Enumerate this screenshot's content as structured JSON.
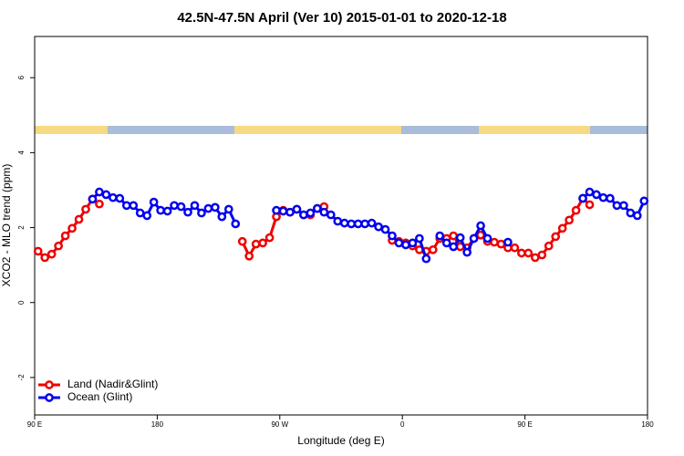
{
  "chart_data": {
    "type": "line",
    "title": "42.5N-47.5N April (Ver 10)   2015-01-01 to 2020-12-18",
    "x_label": "Longitude (deg E)",
    "y_label": "XCO2 - MLO trend (ppm)",
    "xlim": [
      90,
      540
    ],
    "ylim": [
      -3,
      7.1
    ],
    "xticks": [
      {
        "value": 90,
        "label": "90 E"
      },
      180,
      {
        "value": 270,
        "label": "90 W"
      },
      {
        "value": 360,
        "label": "0"
      },
      {
        "value": 450,
        "label": "90 E"
      },
      {
        "value": 540,
        "label": "180"
      }
    ],
    "yticks": [
      -2,
      0,
      2,
      4,
      6
    ],
    "legend": "bottom-left",
    "x": [
      92.5,
      97.5,
      102.5,
      107.5,
      112.5,
      117.5,
      122.5,
      127.5,
      132.5,
      137.5,
      142.5,
      147.5,
      152.5,
      157.5,
      162.5,
      167.5,
      172.5,
      177.5,
      182.5,
      187.5,
      192.5,
      197.5,
      202.5,
      207.5,
      212.5,
      217.5,
      222.5,
      227.5,
      232.5,
      237.5,
      242.5,
      247.5,
      252.5,
      257.5,
      262.5,
      267.5,
      272.5,
      277.5,
      282.5,
      287.5,
      292.5,
      297.5,
      302.5,
      307.5,
      312.5,
      317.5,
      322.5,
      327.5,
      332.5,
      337.5,
      342.5,
      347.5,
      352.5,
      357.5,
      362.5,
      367.5,
      372.5,
      377.5,
      382.5,
      387.5,
      392.5,
      397.5,
      402.5,
      407.5,
      412.5,
      417.5,
      422.5,
      427.5,
      432.5,
      437.5,
      442.5,
      447.5,
      452.5,
      457.5,
      462.5,
      467.5,
      472.5,
      477.5,
      482.5,
      487.5,
      492.5,
      497.5,
      502.5,
      507.5,
      512.5,
      517.5,
      522.5,
      527.5,
      532.5,
      537.5
    ],
    "series": [
      {
        "name": "Land (Nadir&Glint)",
        "color": "#ee0000",
        "values": [
          1.37,
          1.2,
          1.29,
          1.51,
          1.78,
          1.98,
          2.22,
          2.49,
          2.76,
          2.63,
          null,
          null,
          null,
          null,
          null,
          null,
          null,
          null,
          null,
          null,
          null,
          null,
          null,
          null,
          null,
          null,
          null,
          null,
          null,
          null,
          1.63,
          1.24,
          1.56,
          1.59,
          1.73,
          2.29,
          2.46,
          2.41,
          2.49,
          2.34,
          2.34,
          2.51,
          2.56,
          null,
          null,
          null,
          null,
          null,
          null,
          null,
          null,
          null,
          1.66,
          1.63,
          1.59,
          1.51,
          1.41,
          1.37,
          1.41,
          1.71,
          1.71,
          1.78,
          1.49,
          1.46,
          1.71,
          1.8,
          1.63,
          1.61,
          1.56,
          1.46,
          1.46,
          1.32,
          1.32,
          1.2,
          1.27,
          1.51,
          1.76,
          1.98,
          2.2,
          2.46,
          2.78,
          2.61,
          null,
          null,
          null,
          null,
          null,
          null,
          null,
          null
        ]
      },
      {
        "name": "Ocean (Glint)",
        "color": "#0000ee",
        "values": [
          null,
          null,
          null,
          null,
          null,
          null,
          null,
          null,
          2.76,
          2.95,
          2.88,
          2.8,
          2.78,
          2.59,
          2.59,
          2.39,
          2.32,
          2.68,
          2.46,
          2.44,
          2.59,
          2.56,
          2.41,
          2.59,
          2.39,
          2.51,
          2.54,
          2.29,
          2.49,
          2.1,
          null,
          null,
          null,
          null,
          null,
          2.46,
          2.44,
          2.41,
          2.49,
          2.34,
          2.39,
          2.51,
          2.41,
          2.34,
          2.17,
          2.12,
          2.1,
          2.1,
          2.1,
          2.12,
          2.02,
          1.95,
          1.78,
          1.59,
          1.54,
          1.59,
          1.71,
          1.17,
          null,
          1.78,
          1.59,
          1.49,
          1.73,
          1.34,
          1.71,
          2.05,
          1.71,
          null,
          null,
          1.61,
          null,
          null,
          null,
          null,
          null,
          null,
          null,
          null,
          null,
          null,
          2.78,
          2.95,
          2.88,
          2.8,
          2.78,
          2.59,
          2.59,
          2.39,
          2.32,
          2.71
        ]
      }
    ]
  }
}
